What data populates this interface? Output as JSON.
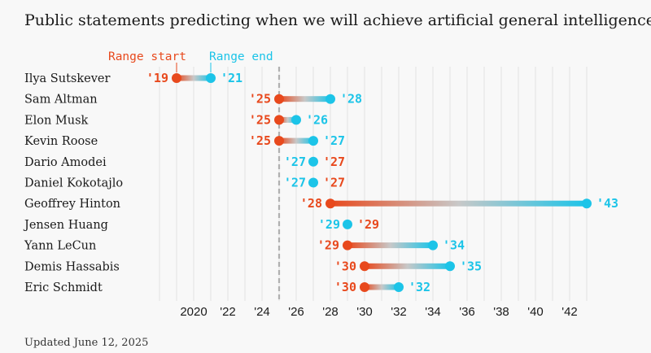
{
  "title": "Public statements predicting when we will achieve artificial general intelligence.",
  "footnote": "Updated June 12, 2025",
  "chart_data": {
    "type": "dumbbell",
    "legend": {
      "start_label": "Range start",
      "end_label": "Range end"
    },
    "colors": {
      "start": "#e8491d",
      "end": "#1cc4e8",
      "bar_mid": "#c8c8c8",
      "current_year_line": "#b0b0b0",
      "grid": "#e2e2e2"
    },
    "xlim": [
      2017.5,
      2043.5
    ],
    "xticks": [
      2020,
      2022,
      2024,
      2026,
      2028,
      2030,
      2032,
      2034,
      2036,
      2038,
      2040,
      2042
    ],
    "xtick_labels": [
      "2020",
      "'22",
      "'24",
      "'26",
      "'28",
      "'30",
      "'32",
      "'34",
      "'36",
      "'38",
      "'40",
      "'42"
    ],
    "reference_year": 2025,
    "rows": [
      {
        "name": "Ilya Sutskever",
        "start": 2019,
        "end": 2021,
        "start_label": "'19",
        "end_label": "'21"
      },
      {
        "name": "Sam Altman",
        "start": 2025,
        "end": 2028,
        "start_label": "'25",
        "end_label": "'28"
      },
      {
        "name": "Elon Musk",
        "start": 2025,
        "end": 2026,
        "start_label": "'25",
        "end_label": "'26"
      },
      {
        "name": "Kevin Roose",
        "start": 2025,
        "end": 2027,
        "start_label": "'25",
        "end_label": "'27"
      },
      {
        "name": "Dario Amodei",
        "start": 2027,
        "end": 2027,
        "start_label": "'27",
        "end_label": "'27"
      },
      {
        "name": "Daniel Kokotajlo",
        "start": 2027,
        "end": 2027,
        "start_label": "'27",
        "end_label": "'27"
      },
      {
        "name": "Geoffrey Hinton",
        "start": 2028,
        "end": 2043,
        "start_label": "'28",
        "end_label": "'43"
      },
      {
        "name": "Jensen Huang",
        "start": 2029,
        "end": 2029,
        "start_label": "'29",
        "end_label": "'29"
      },
      {
        "name": "Yann LeCun",
        "start": 2029,
        "end": 2034,
        "start_label": "'29",
        "end_label": "'34"
      },
      {
        "name": "Demis Hassabis",
        "start": 2030,
        "end": 2035,
        "start_label": "'30",
        "end_label": "'35"
      },
      {
        "name": "Eric Schmidt",
        "start": 2030,
        "end": 2032,
        "start_label": "'30",
        "end_label": "'32"
      }
    ]
  }
}
